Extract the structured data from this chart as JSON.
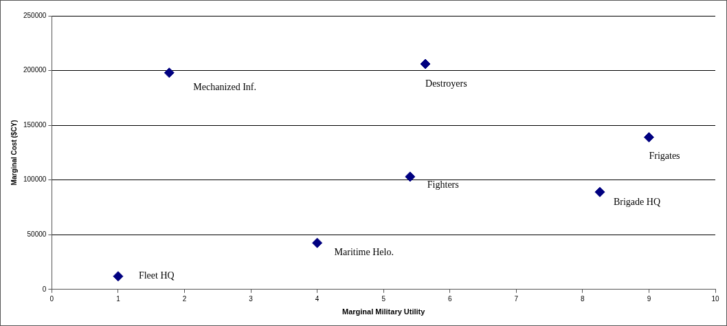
{
  "chart_data": {
    "type": "scatter",
    "xlabel": "Marginal Military Utility",
    "ylabel": "Marginal Cost ($CY)",
    "x": [
      1.0,
      1.77,
      4.0,
      5.63,
      5.4,
      9.0,
      8.26
    ],
    "values": [
      12000,
      198000,
      42500,
      206000,
      103000,
      139000,
      89000
    ],
    "color": "#000080",
    "marker": "diamond",
    "grid": "y",
    "legend": false,
    "xlim": [
      0,
      10
    ],
    "xticks": [
      0,
      1,
      2,
      3,
      4,
      5,
      6,
      7,
      8,
      9,
      10
    ],
    "ylim": [
      0,
      250000
    ],
    "yticks": [
      0,
      50000,
      100000,
      150000,
      200000,
      250000
    ],
    "annotations": [
      {
        "text": "Fleet HQ",
        "x": 1.0,
        "y": 12000
      },
      {
        "text": "Mechanized Inf.",
        "x": 1.77,
        "y": 198000
      },
      {
        "text": "Maritime Helo.",
        "x": 4.0,
        "y": 42500
      },
      {
        "text": "Destroyers",
        "x": 5.63,
        "y": 206000
      },
      {
        "text": "Fighters",
        "x": 5.4,
        "y": 103000
      },
      {
        "text": "Frigates",
        "x": 9.0,
        "y": 139000
      },
      {
        "text": "Brigade HQ",
        "x": 8.26,
        "y": 89000
      }
    ]
  }
}
